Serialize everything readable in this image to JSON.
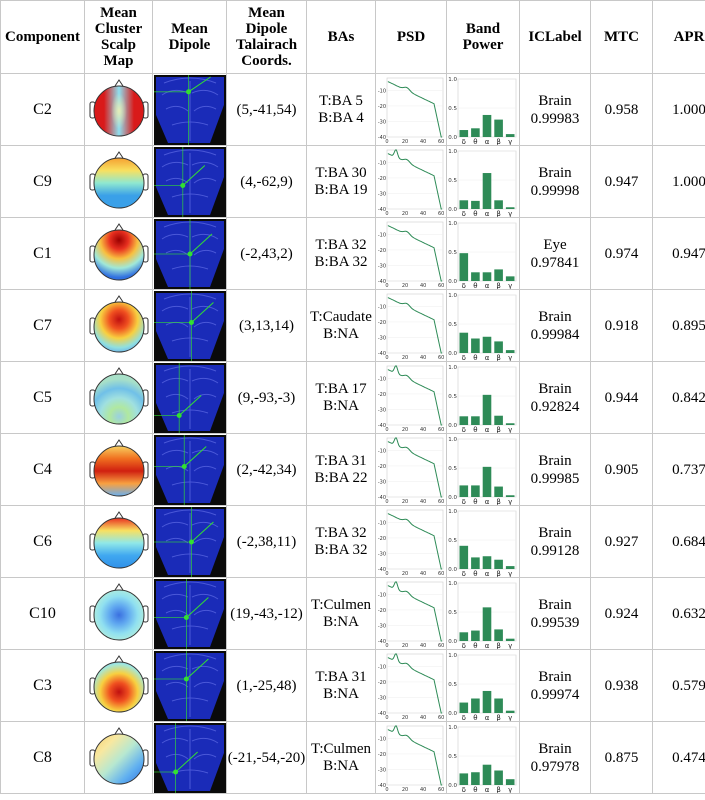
{
  "headers": {
    "component": "Component",
    "scalp": "Mean Cluster Scalp Map",
    "dipole": "Mean Dipole",
    "coords": "Mean Dipole Talairach Coords.",
    "bas": "BAs",
    "psd": "PSD",
    "band": "Band Power",
    "iclabel": "ICLabel",
    "mtc": "MTC",
    "apr": "APR"
  },
  "psd_axis": {
    "y_ticks": [
      "-10",
      "-20",
      "-30",
      "-40"
    ],
    "x_ticks": [
      "0",
      "20",
      "40",
      "60"
    ]
  },
  "band_axis": {
    "y_ticks": [
      "1.0",
      "0.5",
      "0.0"
    ],
    "x_ticks": [
      "δ",
      "θ",
      "α",
      "β",
      "γ"
    ]
  },
  "colors": {
    "psd_line": "#2e8b57",
    "band_bar": "#2e8b57",
    "dipole_bg": "#1a2bb8",
    "dipole_line": "#32e032"
  },
  "rows": [
    {
      "component": "C2",
      "coords": "(5,-41,54)",
      "ba_t": "T:BA 5",
      "ba_b": "B:BA 4",
      "ic_class": "Brain",
      "ic_prob": "0.99983",
      "mtc": "0.958",
      "apr": "1.000",
      "band": [
        0.12,
        0.15,
        0.38,
        0.3,
        0.05
      ],
      "scalp": "bilateral",
      "dipole": [
        0.48,
        0.24
      ],
      "psd_peak": 0
    },
    {
      "component": "C9",
      "coords": "(4,-62,9)",
      "ba_t": "T:BA 30",
      "ba_b": "B:BA 19",
      "ic_class": "Brain",
      "ic_prob": "0.99998",
      "mtc": "0.947",
      "apr": "1.000",
      "band": [
        0.15,
        0.14,
        0.62,
        0.15,
        0.03
      ],
      "scalp": "horizontal",
      "dipole": [
        0.4,
        0.55
      ],
      "psd_peak": 1
    },
    {
      "component": "C1",
      "coords": "(-2,43,2)",
      "ba_t": "T:BA 32",
      "ba_b": "B:BA 32",
      "ic_class": "Eye",
      "ic_prob": "0.97841",
      "mtc": "0.974",
      "apr": "0.947",
      "band": [
        0.48,
        0.15,
        0.15,
        0.2,
        0.08
      ],
      "scalp": "frontal",
      "dipole": [
        0.5,
        0.5
      ],
      "psd_peak": 0
    },
    {
      "component": "C7",
      "coords": "(3,13,14)",
      "ba_t": "T:Caudate",
      "ba_b": "B:NA",
      "ic_class": "Brain",
      "ic_prob": "0.99984",
      "mtc": "0.918",
      "apr": "0.895",
      "band": [
        0.35,
        0.25,
        0.28,
        0.2,
        0.05
      ],
      "scalp": "frontal-central",
      "dipole": [
        0.52,
        0.45
      ],
      "psd_peak": 0
    },
    {
      "component": "C5",
      "coords": "(9,-93,-3)",
      "ba_t": "T:BA 17",
      "ba_b": "B:NA",
      "ic_class": "Brain",
      "ic_prob": "0.92824",
      "mtc": "0.944",
      "apr": "0.842",
      "band": [
        0.15,
        0.15,
        0.52,
        0.16,
        0.03
      ],
      "scalp": "occipital",
      "dipole": [
        0.35,
        0.75
      ],
      "psd_peak": 1
    },
    {
      "component": "C4",
      "coords": "(2,-42,34)",
      "ba_t": "T:BA 31",
      "ba_b": "B:BA 22",
      "ic_class": "Brain",
      "ic_prob": "0.99985",
      "mtc": "0.905",
      "apr": "0.737",
      "band": [
        0.2,
        0.2,
        0.52,
        0.18,
        0.03
      ],
      "scalp": "band",
      "dipole": [
        0.42,
        0.45
      ],
      "psd_peak": 1
    },
    {
      "component": "C6",
      "coords": "(-2,38,11)",
      "ba_t": "T:BA 32",
      "ba_b": "B:BA 32",
      "ic_class": "Brain",
      "ic_prob": "0.99128",
      "mtc": "0.927",
      "apr": "0.684",
      "band": [
        0.4,
        0.2,
        0.22,
        0.16,
        0.05
      ],
      "scalp": "band2",
      "dipole": [
        0.52,
        0.5
      ],
      "psd_peak": 0
    },
    {
      "component": "C10",
      "coords": "(19,-43,-12)",
      "ba_t": "T:Culmen",
      "ba_b": "B:NA",
      "ic_class": "Brain",
      "ic_prob": "0.99539",
      "mtc": "0.924",
      "apr": "0.632",
      "band": [
        0.15,
        0.18,
        0.58,
        0.2,
        0.04
      ],
      "scalp": "cool",
      "dipole": [
        0.45,
        0.55
      ],
      "psd_peak": 1
    },
    {
      "component": "C3",
      "coords": "(1,-25,48)",
      "ba_t": "T:BA 31",
      "ba_b": "B:NA",
      "ic_class": "Brain",
      "ic_prob": "0.99974",
      "mtc": "0.938",
      "apr": "0.579",
      "band": [
        0.18,
        0.25,
        0.38,
        0.25,
        0.04
      ],
      "scalp": "central",
      "dipole": [
        0.45,
        0.4
      ],
      "psd_peak": 1
    },
    {
      "component": "C8",
      "coords": "(-21,-54,-20)",
      "ba_t": "T:Culmen",
      "ba_b": "B:NA",
      "ic_class": "Brain",
      "ic_prob": "0.97978",
      "mtc": "0.875",
      "apr": "0.474",
      "band": [
        0.2,
        0.22,
        0.35,
        0.25,
        0.1
      ],
      "scalp": "left",
      "dipole": [
        0.3,
        0.7
      ],
      "psd_peak": 1
    }
  ]
}
